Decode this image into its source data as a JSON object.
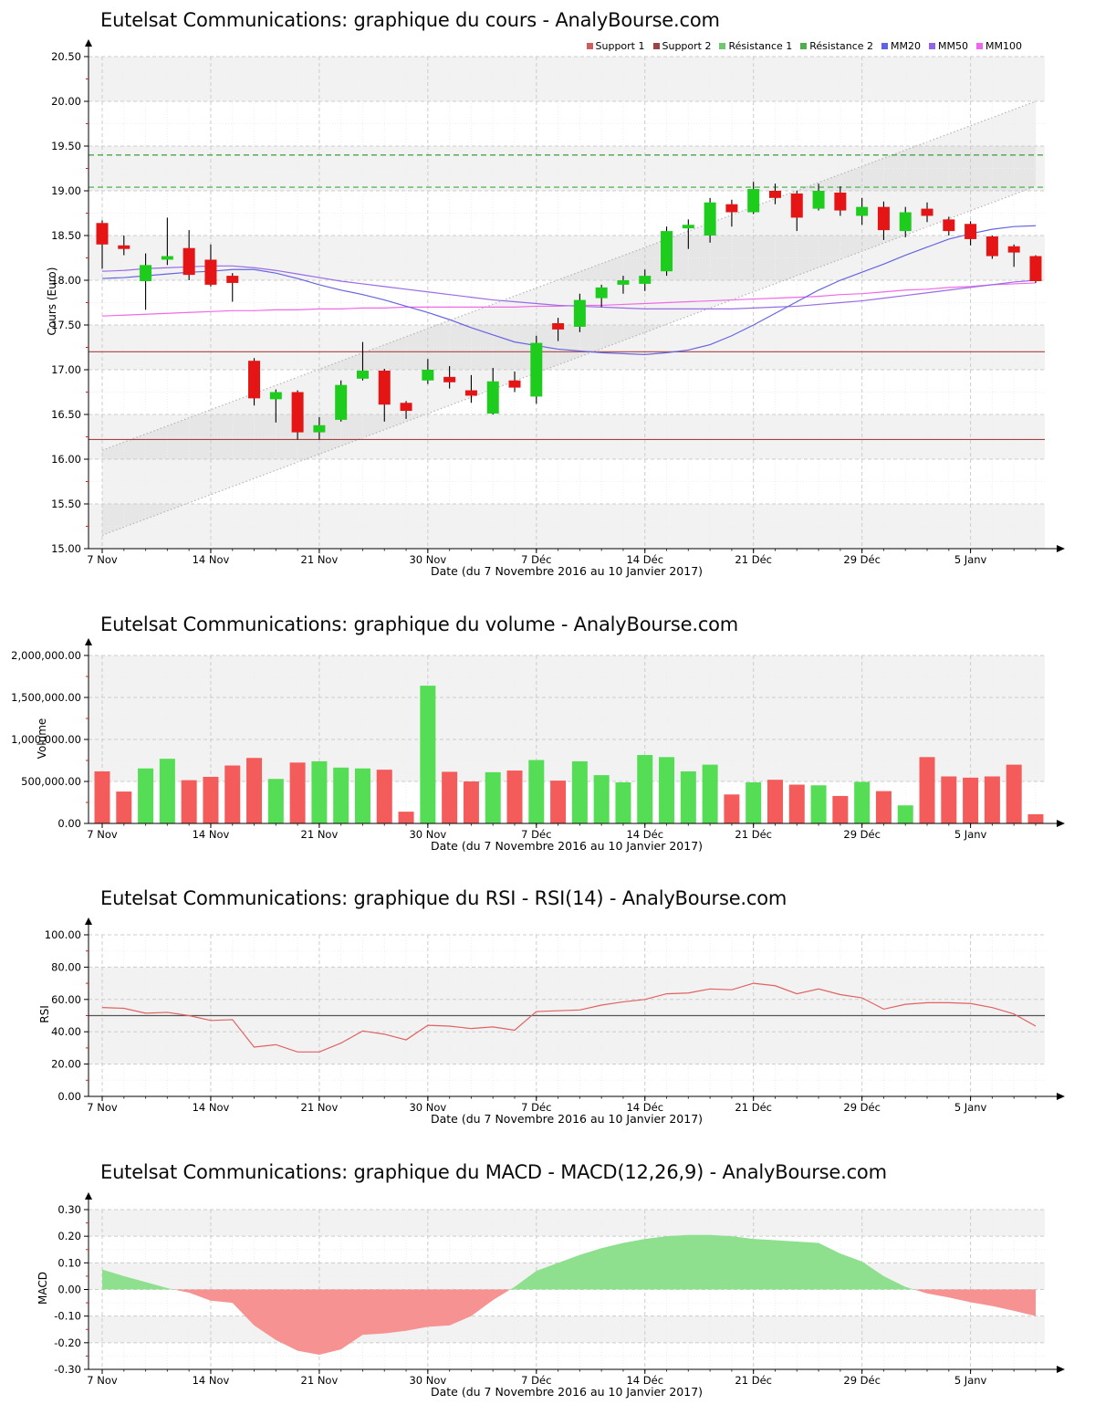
{
  "source_site": "AnalyBourse.com",
  "instrument": "Eutelsat Communications",
  "chart_data": [
    {
      "id": "price",
      "type": "candlestick",
      "title": "Eutelsat Communications: graphique du cours - AnalyBourse.com",
      "ylabel": "Cours (Euro)",
      "xlabel": "Date (du 7 Novembre 2016 au 10 Janvier 2017)",
      "ylim": [
        15.0,
        20.5
      ],
      "y_ticks": {
        "values": [
          15.0,
          15.5,
          16.0,
          16.5,
          17.0,
          17.5,
          18.0,
          18.5,
          19.0,
          19.5,
          20.0,
          20.5
        ],
        "labels": [
          "15.00",
          "15.50",
          "16.00",
          "16.50",
          "17.00",
          "17.50",
          "18.00",
          "18.50",
          "19.00",
          "19.50",
          "20.00",
          "20.50"
        ]
      },
      "y_minor_step": 0.25,
      "x_ticks": {
        "indices": [
          0,
          5,
          10,
          15,
          20,
          25,
          30,
          35,
          40
        ],
        "labels": [
          "7 Nov",
          "14 Nov",
          "21 Nov",
          "30 Nov",
          "7 Déc",
          "14 Déc",
          "21 Déc",
          "29 Déc",
          "5 Janv"
        ]
      },
      "dates": [
        "07/11",
        "08/11",
        "09/11",
        "10/11",
        "11/11",
        "14/11",
        "15/11",
        "16/11",
        "17/11",
        "18/11",
        "21/11",
        "22/11",
        "23/11",
        "28/11",
        "29/11",
        "30/11",
        "01/12",
        "02/12",
        "05/12",
        "06/12",
        "07/12",
        "08/12",
        "09/12",
        "12/12",
        "13/12",
        "14/12",
        "15/12",
        "16/12",
        "19/12",
        "20/12",
        "21/12",
        "22/12",
        "23/12",
        "27/12",
        "28/12",
        "29/12",
        "30/12",
        "02/01",
        "03/01",
        "04/01",
        "05/01",
        "06/01",
        "09/01",
        "10/01"
      ],
      "open": [
        18.64,
        18.39,
        17.99,
        18.23,
        18.36,
        18.23,
        18.05,
        17.1,
        16.67,
        16.75,
        16.3,
        16.44,
        16.9,
        16.99,
        16.63,
        16.88,
        16.92,
        16.77,
        16.51,
        16.88,
        16.7,
        17.52,
        17.48,
        17.8,
        17.95,
        17.96,
        18.1,
        18.58,
        18.5,
        18.85,
        18.76,
        19.0,
        18.97,
        18.8,
        18.98,
        18.72,
        18.82,
        18.55,
        18.8,
        18.68,
        18.63,
        18.49,
        18.38,
        18.27
      ],
      "high": [
        18.67,
        18.5,
        18.3,
        18.7,
        18.56,
        18.4,
        18.08,
        17.13,
        16.78,
        16.77,
        16.47,
        16.88,
        17.31,
        17.01,
        16.65,
        17.12,
        17.04,
        16.94,
        17.02,
        16.98,
        17.38,
        17.58,
        17.85,
        17.95,
        18.05,
        18.12,
        18.6,
        18.68,
        18.92,
        18.9,
        19.1,
        19.08,
        19.0,
        19.08,
        19.05,
        18.92,
        18.88,
        18.82,
        18.87,
        18.71,
        18.66,
        18.5,
        18.4,
        18.28
      ],
      "low": [
        18.13,
        18.28,
        17.67,
        18.17,
        18.0,
        17.93,
        17.76,
        16.6,
        16.41,
        16.22,
        16.22,
        16.42,
        16.88,
        16.42,
        16.45,
        16.84,
        16.79,
        16.63,
        16.5,
        16.75,
        16.62,
        17.32,
        17.42,
        17.7,
        17.85,
        17.88,
        18.05,
        18.35,
        18.42,
        18.6,
        18.74,
        18.85,
        18.55,
        18.78,
        18.72,
        18.62,
        18.45,
        18.48,
        18.65,
        18.5,
        18.39,
        18.24,
        18.15,
        17.97
      ],
      "close": [
        18.4,
        18.35,
        18.17,
        18.27,
        18.06,
        17.95,
        17.97,
        16.68,
        16.75,
        16.3,
        16.38,
        16.83,
        16.99,
        16.61,
        16.54,
        17.0,
        16.86,
        16.71,
        16.87,
        16.8,
        17.3,
        17.45,
        17.78,
        17.92,
        18.0,
        18.05,
        18.55,
        18.62,
        18.87,
        18.76,
        19.02,
        18.92,
        18.7,
        19.0,
        18.78,
        18.82,
        18.56,
        18.76,
        18.72,
        18.55,
        18.46,
        18.27,
        18.31,
        17.99
      ],
      "levels": {
        "support1": 17.2,
        "support2": 16.22,
        "resistance1": 19.04,
        "resistance2": 19.4
      },
      "channel": {
        "upper_start": 16.1,
        "upper_end": 20.0,
        "lower_start": 15.15,
        "lower_end": 19.05
      },
      "mm20": [
        18.02,
        18.03,
        18.05,
        18.07,
        18.09,
        18.1,
        18.12,
        18.12,
        18.08,
        18.02,
        17.95,
        17.89,
        17.84,
        17.78,
        17.71,
        17.64,
        17.56,
        17.47,
        17.39,
        17.31,
        17.27,
        17.23,
        17.21,
        17.19,
        17.18,
        17.17,
        17.19,
        17.22,
        17.28,
        17.38,
        17.5,
        17.63,
        17.76,
        17.89,
        18.0,
        18.09,
        18.18,
        18.28,
        18.37,
        18.46,
        18.52,
        18.57,
        18.6,
        18.61
      ],
      "mm50": [
        18.1,
        18.11,
        18.13,
        18.14,
        18.15,
        18.16,
        18.16,
        18.14,
        18.11,
        18.07,
        18.03,
        17.99,
        17.96,
        17.93,
        17.9,
        17.87,
        17.84,
        17.81,
        17.78,
        17.76,
        17.74,
        17.72,
        17.71,
        17.7,
        17.69,
        17.68,
        17.68,
        17.68,
        17.68,
        17.68,
        17.69,
        17.7,
        17.71,
        17.73,
        17.75,
        17.77,
        17.8,
        17.83,
        17.86,
        17.89,
        17.92,
        17.95,
        17.98,
        18.0
      ],
      "mm100": [
        17.6,
        17.61,
        17.62,
        17.63,
        17.64,
        17.65,
        17.66,
        17.66,
        17.67,
        17.67,
        17.68,
        17.68,
        17.69,
        17.69,
        17.7,
        17.7,
        17.7,
        17.7,
        17.7,
        17.7,
        17.71,
        17.71,
        17.72,
        17.72,
        17.73,
        17.74,
        17.75,
        17.76,
        17.77,
        17.78,
        17.79,
        17.8,
        17.81,
        17.82,
        17.84,
        17.85,
        17.87,
        17.89,
        17.9,
        17.92,
        17.93,
        17.95,
        17.96,
        17.97
      ],
      "legend": [
        {
          "label": "Support 1",
          "color": "#cd5f5f"
        },
        {
          "label": "Support 2",
          "color": "#9e4343"
        },
        {
          "label": "Résistance 1",
          "color": "#6fc76f"
        },
        {
          "label": "Résistance 2",
          "color": "#4fae4f"
        },
        {
          "label": "MM20",
          "color": "#6262e8"
        },
        {
          "label": "MM50",
          "color": "#9066e4"
        },
        {
          "label": "MM100",
          "color": "#ee66ee"
        }
      ],
      "bands": [
        [
          15.0,
          15.5
        ],
        [
          16.0,
          16.5
        ],
        [
          17.0,
          17.5
        ],
        [
          18.0,
          18.5
        ],
        [
          19.0,
          19.5
        ],
        [
          20.0,
          20.5
        ]
      ],
      "colors": {
        "up": "#1ecc1e",
        "down": "#e51515",
        "wick": "#000000",
        "mm20": "#6565e0",
        "mm50": "#9a6ce4",
        "mm100": "#f06ae8",
        "support1": "#b25555",
        "support2": "#a34343",
        "resistance1": "#5cb85c",
        "resistance2": "#4aa44a",
        "channel": "#b5b5b5"
      }
    },
    {
      "id": "volume",
      "type": "bar",
      "title": "Eutelsat Communications: graphique du volume - AnalyBourse.com",
      "ylabel": "Volume",
      "xlabel": "Date (du 7 Novembre 2016 au 10 Janvier 2017)",
      "ylim": [
        0,
        2000000
      ],
      "y_ticks": {
        "values": [
          0,
          500000,
          1000000,
          1500000,
          2000000
        ],
        "labels": [
          "0.00",
          "500,000.00",
          "1,000,000.00",
          "1,500,000.00",
          "2,000,000.00"
        ]
      },
      "y_minor_step": 250000,
      "x_ticks": {
        "indices": [
          0,
          5,
          10,
          15,
          20,
          25,
          30,
          35,
          40
        ],
        "labels": [
          "7 Nov",
          "14 Nov",
          "21 Nov",
          "30 Nov",
          "7 Déc",
          "14 Déc",
          "21 Déc",
          "29 Déc",
          "5 Janv"
        ]
      },
      "values": [
        620000,
        380000,
        655000,
        770000,
        515000,
        555000,
        690000,
        780000,
        530000,
        725000,
        740000,
        665000,
        655000,
        640000,
        140000,
        1640000,
        615000,
        500000,
        610000,
        630000,
        755000,
        510000,
        740000,
        575000,
        490000,
        815000,
        790000,
        620000,
        700000,
        345000,
        490000,
        520000,
        462000,
        454000,
        327000,
        495000,
        385000,
        215000,
        790000,
        560000,
        545000,
        560000,
        700000,
        110000
      ],
      "bands": [
        [
          500000,
          2000000
        ]
      ],
      "colors": {
        "up": "#55dd55",
        "down": "#f45c5c"
      }
    },
    {
      "id": "rsi",
      "type": "line",
      "title": "Eutelsat Communications: graphique du RSI - RSI(14) - AnalyBourse.com",
      "ylabel": "RSI",
      "xlabel": "Date (du 7 Novembre 2016 au 10 Janvier 2017)",
      "ylim": [
        0,
        100
      ],
      "y_ticks": {
        "values": [
          0,
          20,
          40,
          60,
          80,
          100
        ],
        "labels": [
          "0.00",
          "20.00",
          "40.00",
          "60.00",
          "80.00",
          "100.00"
        ]
      },
      "y_minor_step": 10,
      "x_ticks": {
        "indices": [
          0,
          5,
          10,
          15,
          20,
          25,
          30,
          35,
          40
        ],
        "labels": [
          "7 Nov",
          "14 Nov",
          "21 Nov",
          "30 Nov",
          "7 Déc",
          "14 Déc",
          "21 Déc",
          "29 Déc",
          "5 Janv"
        ]
      },
      "values": [
        55,
        54.5,
        51.5,
        52,
        50,
        47,
        47.5,
        30.5,
        32,
        27.5,
        27.5,
        33,
        40.5,
        38.5,
        35,
        44,
        43.5,
        42,
        43,
        41,
        52.5,
        53,
        53.5,
        56.5,
        58.5,
        60,
        63.5,
        64,
        66.5,
        66,
        70,
        68.5,
        63.5,
        66.5,
        63,
        61,
        54,
        57,
        58,
        58,
        57.5,
        55,
        51,
        43.5
      ],
      "midline": 50,
      "bands": [
        [
          20,
          80
        ]
      ],
      "colors": {
        "line": "#e06262",
        "midline": "#555555"
      }
    },
    {
      "id": "macd",
      "type": "area",
      "title": "Eutelsat Communications: graphique du MACD - MACD(12,26,9) - AnalyBourse.com",
      "ylabel": "MACD",
      "xlabel": "Date (du 7 Novembre 2016 au 10 Janvier 2017)",
      "ylim": [
        -0.3,
        0.3
      ],
      "y_ticks": {
        "values": [
          -0.3,
          -0.2,
          -0.1,
          0,
          0.1,
          0.2,
          0.3
        ],
        "labels": [
          "-0.30",
          "-0.20",
          "-0.10",
          "0.00",
          "0.10",
          "0.20",
          "0.30"
        ]
      },
      "y_minor_step": 0.05,
      "x_ticks": {
        "indices": [
          0,
          5,
          10,
          15,
          20,
          25,
          30,
          35,
          40
        ],
        "labels": [
          "7 Nov",
          "14 Nov",
          "21 Nov",
          "30 Nov",
          "7 Déc",
          "14 Déc",
          "21 Déc",
          "29 Déc",
          "5 Janv"
        ]
      },
      "values": [
        0.075,
        0.05,
        0.028,
        0.005,
        -0.012,
        -0.042,
        -0.05,
        -0.135,
        -0.19,
        -0.23,
        -0.245,
        -0.225,
        -0.17,
        -0.165,
        -0.155,
        -0.14,
        -0.135,
        -0.1,
        -0.04,
        0.01,
        0.07,
        0.1,
        0.13,
        0.155,
        0.175,
        0.19,
        0.2,
        0.205,
        0.205,
        0.2,
        0.19,
        0.185,
        0.18,
        0.175,
        0.135,
        0.105,
        0.05,
        0.01,
        -0.015,
        -0.03,
        -0.048,
        -0.062,
        -0.08,
        -0.1
      ],
      "bands": [
        [
          0.2,
          0.3
        ],
        [
          0.0,
          0.1
        ],
        [
          -0.2,
          -0.1
        ]
      ],
      "colors": {
        "pos": "#8ee08e",
        "neg": "#f79292"
      }
    }
  ]
}
